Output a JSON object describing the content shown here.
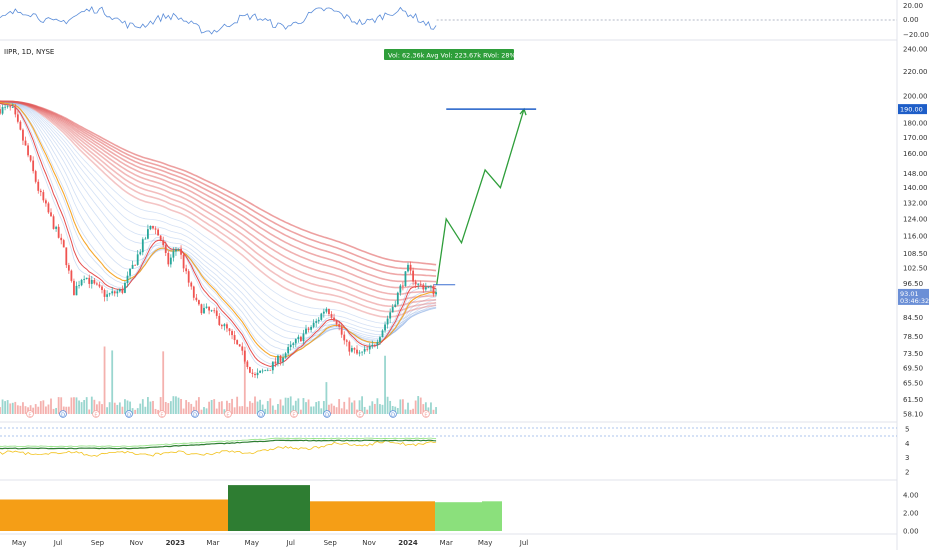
{
  "chart_data": {
    "type": "candlestick",
    "symbol_header": "IIPR, 1D, NYSE",
    "stats_badge": "Vol: 62.36k   Avg Vol: 223.67k   RVol: 28%",
    "price_axis": {
      "ticks": [
        240.0,
        220.0,
        200.0,
        190.0,
        180.0,
        170.0,
        160.0,
        148.0,
        140.0,
        132.0,
        124.0,
        116.0,
        108.5,
        102.5,
        96.5,
        84.5,
        78.5,
        73.5,
        69.5,
        65.5,
        61.5,
        58.1
      ],
      "range": [
        56,
        245
      ],
      "scale": "log",
      "current_price": "93.01",
      "current_time_label": "03:46:32",
      "target_price": "190.00"
    },
    "oscillator_axis": {
      "ticks": [
        "20.00",
        "0.00",
        "−20.00"
      ]
    },
    "mid_indicator_axis": {
      "ticks": [
        "5",
        "4",
        "3",
        "2"
      ]
    },
    "bottom_indicator_axis": {
      "ticks": [
        "4.00",
        "2.00",
        "0.00"
      ]
    },
    "x_axis": {
      "labels": [
        "May",
        "Jul",
        "Sep",
        "Nov",
        "2023",
        "Mar",
        "May",
        "Jul",
        "Sep",
        "Nov",
        "2024",
        "Mar",
        "May",
        "Jul"
      ]
    },
    "price_path": [
      {
        "t": "2022-04-20",
        "p": 190
      },
      {
        "t": "2022-05-10",
        "p": 165
      },
      {
        "t": "2022-06-01",
        "p": 138
      },
      {
        "t": "2022-06-20",
        "p": 124
      },
      {
        "t": "2022-07-10",
        "p": 110
      },
      {
        "t": "2022-07-25",
        "p": 93
      },
      {
        "t": "2022-08-10",
        "p": 100
      },
      {
        "t": "2022-08-25",
        "p": 96
      },
      {
        "t": "2022-09-15",
        "p": 92
      },
      {
        "t": "2022-10-10",
        "p": 94
      },
      {
        "t": "2022-11-10",
        "p": 112
      },
      {
        "t": "2022-11-25",
        "p": 122
      },
      {
        "t": "2022-12-10",
        "p": 114
      },
      {
        "t": "2022-12-20",
        "p": 104
      },
      {
        "t": "2023-01-05",
        "p": 112
      },
      {
        "t": "2023-01-20",
        "p": 98
      },
      {
        "t": "2023-02-05",
        "p": 88
      },
      {
        "t": "2023-03-01",
        "p": 86
      },
      {
        "t": "2023-03-25",
        "p": 80
      },
      {
        "t": "2023-04-20",
        "p": 72
      },
      {
        "t": "2023-05-05",
        "p": 67
      },
      {
        "t": "2023-06-01",
        "p": 70
      },
      {
        "t": "2023-06-25",
        "p": 74
      },
      {
        "t": "2023-07-20",
        "p": 79
      },
      {
        "t": "2023-08-10",
        "p": 83
      },
      {
        "t": "2023-08-25",
        "p": 88
      },
      {
        "t": "2023-09-10",
        "p": 84
      },
      {
        "t": "2023-09-25",
        "p": 76
      },
      {
        "t": "2023-10-15",
        "p": 73
      },
      {
        "t": "2023-11-05",
        "p": 75
      },
      {
        "t": "2023-11-25",
        "p": 82
      },
      {
        "t": "2023-12-15",
        "p": 92
      },
      {
        "t": "2024-01-01",
        "p": 102
      },
      {
        "t": "2024-01-15",
        "p": 96
      },
      {
        "t": "2024-02-01",
        "p": 95
      },
      {
        "t": "2024-02-15",
        "p": 93
      }
    ],
    "projection_path": [
      {
        "t": "2024-02-15",
        "p": 96
      },
      {
        "t": "2024-03-01",
        "p": 124
      },
      {
        "t": "2024-03-25",
        "p": 113
      },
      {
        "t": "2024-05-01",
        "p": 150
      },
      {
        "t": "2024-05-25",
        "p": 140
      },
      {
        "t": "2024-07-01",
        "p": 190
      }
    ],
    "reference_level": {
      "p": 96,
      "from": "2024-02-10",
      "to": "2024-03-15"
    },
    "target_level": {
      "p": 190,
      "from": "2024-03-01",
      "to": "2024-07-20"
    },
    "colors": {
      "up": "#26a69a",
      "down": "#ef5350",
      "fast_ribbon": "#5b8dd9",
      "slow_ribbon": "#e05a5a",
      "projection": "#2e9e3a",
      "target_line": "#1e5ec8",
      "price_tag": "#6b8fd6",
      "orange": "#f59e16",
      "dark_green": "#2e7d32",
      "light_green": "#8be07c"
    },
    "event_markers": [
      "E",
      "D"
    ]
  }
}
